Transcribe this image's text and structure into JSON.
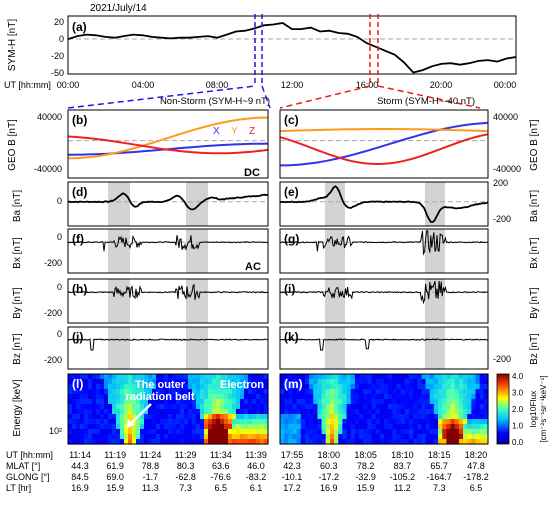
{
  "figure": {
    "date": "2021/July/14",
    "top": {
      "panel_label": "(a)",
      "ylabel": "SYM-H [nT]",
      "ylim": [
        -50,
        25
      ],
      "yticks": [
        "20",
        "0",
        "-20",
        "-50"
      ],
      "xlabel": "UT [hh:mm]",
      "xticks": [
        "00:00",
        "04:00",
        "08:00",
        "12:00",
        "16:00",
        "20:00",
        "00:00"
      ]
    },
    "left_title": "Non-Storm (SYM-H~9 nT)",
    "right_title": "Storm (SYM-H~-40 nT)",
    "panel_labels": {
      "b": "(b)",
      "c": "(c)",
      "d": "(d)",
      "e": "(e)",
      "f": "(f)",
      "g": "(g)",
      "h": "(h)",
      "i": "(i)",
      "j": "(j)",
      "k": "(k)",
      "l": "(l)",
      "m": "(m)"
    },
    "ylabels": {
      "geo": "GEO B [nT]",
      "ba": "Ba [nT]",
      "bx": "Bx [nT]",
      "by": "By [nT]",
      "bz": "Bz [nT]",
      "energy": "Energy [keV]"
    },
    "ytick_labels": {
      "geo_top": "40000",
      "geo_bot": "-40000",
      "ba_top": "200",
      "ba_zero": "0",
      "ba_bot": "-200",
      "bx_zero": "0",
      "bx_bot": "-200",
      "by_zero": "0",
      "by_bot": "-200",
      "bz_zero": "0",
      "bz_bot": "-200",
      "energy_tick": "10²"
    },
    "legend": {
      "x": "X",
      "y": "Y",
      "z": "Z"
    },
    "dc_label": "DC",
    "ac_label": "AC",
    "annotation": "The outer radiation belt",
    "electron_label": "Electron",
    "colorbar": {
      "ticks": [
        "4.0",
        "3.0",
        "2.0",
        "1.0",
        "0.0"
      ],
      "label_top": "log10Flux",
      "label_bottom": "[cm⁻²s⁻¹sr⁻¹keV⁻¹]"
    },
    "footer_row_labels": [
      "UT [hh:mm]",
      "MLAT [°]",
      "GLONG [°]",
      "LT [hr]"
    ],
    "left_footer": [
      [
        "11:14",
        "11:19",
        "11:24",
        "11:29",
        "11:34",
        "11:39"
      ],
      [
        "44.3",
        "61.9",
        "78.8",
        "80.3",
        "63.6",
        "46.0"
      ],
      [
        "84.5",
        "69.0",
        "-1.7",
        "-62.8",
        "-76.6",
        "-83.2"
      ],
      [
        "16.9",
        "15.9",
        "11.3",
        "7.3",
        "6.5",
        "6.1"
      ]
    ],
    "right_footer": [
      [
        "17:55",
        "18:00",
        "18:05",
        "18:10",
        "18:15",
        "18:20"
      ],
      [
        "42.3",
        "60.3",
        "78.2",
        "83.7",
        "65.7",
        "47.8"
      ],
      [
        "-10.1",
        "-17.2",
        "-32.9",
        "-105.2",
        "-164.7",
        "-178.2"
      ],
      [
        "17.2",
        "16.9",
        "15.9",
        "11.2",
        "7.3",
        "6.5"
      ]
    ],
    "colors": {
      "x_component": "#3333ee",
      "y_component": "#ff9a1a",
      "z_component": "#ee2222",
      "nonstorm_marker": "#1a1aee",
      "storm_marker": "#ee1a1a",
      "shade": "#d3d3d3"
    }
  },
  "chart_data": [
    {
      "type": "line",
      "name": "SYM-H",
      "x_hours": [
        0,
        0.5,
        1,
        1.5,
        2,
        2.5,
        3,
        3.5,
        4,
        4.5,
        5,
        5.5,
        6,
        6.5,
        7,
        7.5,
        8,
        8.5,
        9,
        9.5,
        10,
        10.5,
        11,
        11.5,
        12,
        12.5,
        13,
        13.5,
        14,
        14.5,
        15,
        15.5,
        16,
        16.5,
        17,
        17.5,
        18,
        18.5,
        19,
        19.5,
        20,
        20.5,
        21,
        21.5,
        22,
        22.5,
        23,
        23.5,
        24
      ],
      "y": [
        -5,
        -1,
        1,
        0,
        -2,
        -3,
        -1,
        1,
        0,
        -2,
        -3,
        -4,
        -3,
        -3,
        -2,
        -1,
        -3,
        1,
        5,
        6,
        9,
        13,
        14,
        16,
        8,
        8,
        10,
        5,
        6,
        3,
        2,
        -2,
        -10,
        -15,
        -20,
        -25,
        -35,
        -48,
        -45,
        -40,
        -37,
        -36,
        -38,
        -36,
        -33,
        -32,
        -34,
        -30,
        -28
      ],
      "xlim": [
        0,
        24
      ],
      "ylim": [
        -50,
        25
      ],
      "nonstorm_interval_ut": [
        "11:14",
        "11:39"
      ],
      "storm_interval_ut": [
        "17:55",
        "18:20"
      ]
    },
    {
      "type": "line",
      "name": "GEO B non-storm",
      "series": [
        {
          "name": "X",
          "start": -15000,
          "end": 500
        },
        {
          "name": "Y",
          "start": -20000,
          "end": 37000
        },
        {
          "name": "Z",
          "start": 10000,
          "end": -10000
        }
      ],
      "ylim": [
        -40000,
        40000
      ]
    },
    {
      "type": "line",
      "name": "GEO B storm",
      "series": [
        {
          "name": "X",
          "start": -30000,
          "end": 37000
        },
        {
          "name": "Y",
          "start": 19000,
          "end": 18000
        },
        {
          "name": "Z",
          "start": 5000,
          "end": 5000
        }
      ],
      "ylim": [
        -40000,
        40000
      ]
    }
  ]
}
